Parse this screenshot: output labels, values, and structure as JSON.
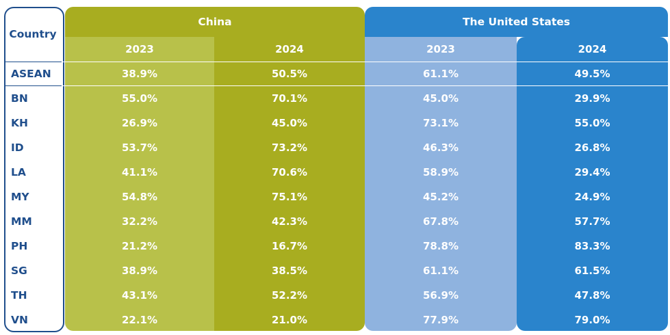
{
  "chart_data": {
    "type": "table",
    "row_header": "Country",
    "groups": [
      {
        "name": "China",
        "years": [
          "2023",
          "2024"
        ],
        "color_light": "#b8c14a",
        "color_dark": "#a8ad20"
      },
      {
        "name": "The United States",
        "years": [
          "2023",
          "2024"
        ],
        "color_light": "#8fb3df",
        "color_dark": "#2a84cc"
      }
    ],
    "columns": [
      "China 2023",
      "China 2024",
      "The United States 2023",
      "The United States 2024"
    ],
    "rows": [
      {
        "country": "ASEAN",
        "values": [
          "38.9%",
          "50.5%",
          "61.1%",
          "49.5%"
        ]
      },
      {
        "country": "BN",
        "values": [
          "55.0%",
          "70.1%",
          "45.0%",
          "29.9%"
        ]
      },
      {
        "country": "KH",
        "values": [
          "26.9%",
          "45.0%",
          "73.1%",
          "55.0%"
        ]
      },
      {
        "country": "ID",
        "values": [
          "53.7%",
          "73.2%",
          "46.3%",
          "26.8%"
        ]
      },
      {
        "country": "LA",
        "values": [
          "41.1%",
          "70.6%",
          "58.9%",
          "29.4%"
        ]
      },
      {
        "country": "MY",
        "values": [
          "54.8%",
          "75.1%",
          "45.2%",
          "24.9%"
        ]
      },
      {
        "country": "MM",
        "values": [
          "32.2%",
          "42.3%",
          "67.8%",
          "57.7%"
        ]
      },
      {
        "country": "PH",
        "values": [
          "21.2%",
          "16.7%",
          "78.8%",
          "83.3%"
        ]
      },
      {
        "country": "SG",
        "values": [
          "38.9%",
          "38.5%",
          "61.1%",
          "61.5%"
        ]
      },
      {
        "country": "TH",
        "values": [
          "43.1%",
          "52.2%",
          "56.9%",
          "47.8%"
        ]
      },
      {
        "country": "VN",
        "values": [
          "22.1%",
          "21.0%",
          "77.9%",
          "79.0%"
        ]
      }
    ],
    "border_color": "#1f4e8c"
  }
}
